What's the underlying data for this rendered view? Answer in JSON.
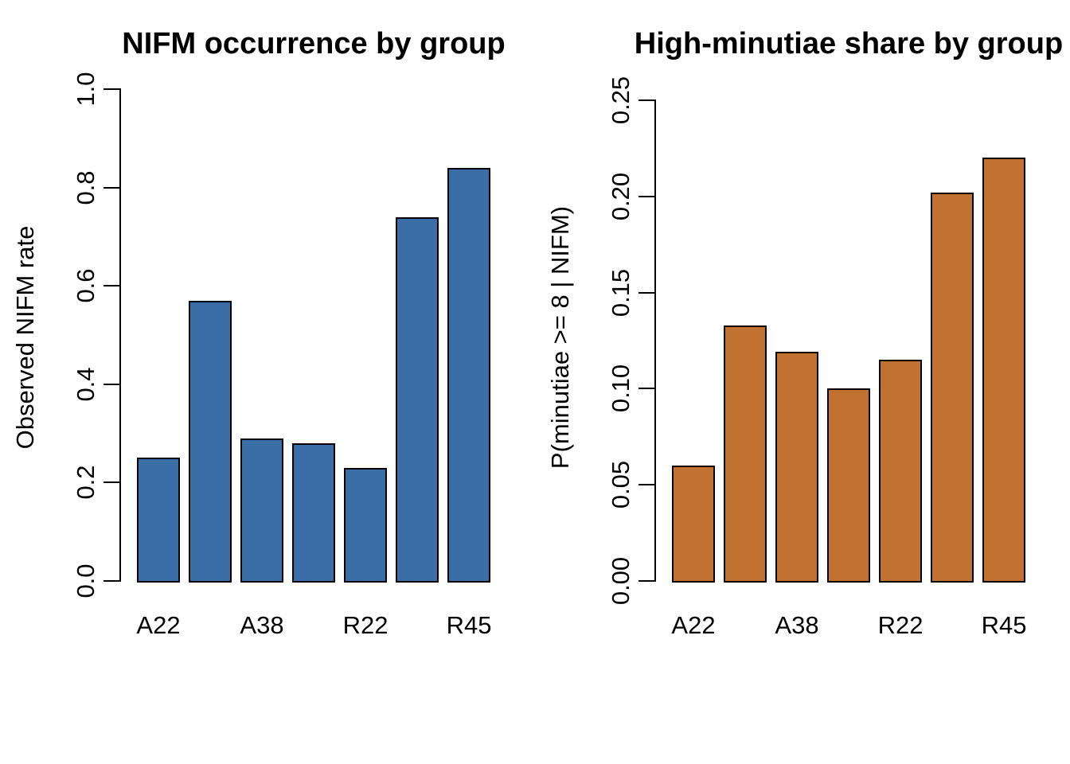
{
  "figure": {
    "background": "#FFFFFF",
    "text_color": "#000000",
    "axis_color": "#000000"
  },
  "chart_data": [
    {
      "id": "nifm-occurrence",
      "type": "bar",
      "title": "NIFM occurrence by group",
      "xlabel": "",
      "ylabel": "Observed NIFM rate",
      "categories": [
        "A22",
        "",
        "A38",
        "",
        "R22",
        "",
        "R45"
      ],
      "values": [
        0.25,
        0.57,
        0.29,
        0.28,
        0.23,
        0.74,
        0.84
      ],
      "ylim": [
        0,
        1.0
      ],
      "ytick_labels": [
        "0.0",
        "0.2",
        "0.4",
        "0.6",
        "0.8",
        "1.0"
      ],
      "bar_color": "#3B6DA6",
      "bar_border_color": "#000000",
      "grid": false,
      "legend": null
    },
    {
      "id": "high-minutiae-share",
      "type": "bar",
      "title": "High-minutiae share by group",
      "xlabel": "",
      "ylabel": "P(minutiae >= 8 | NIFM)",
      "categories": [
        "A22",
        "",
        "A38",
        "",
        "R22",
        "",
        "R45"
      ],
      "values": [
        0.06,
        0.133,
        0.119,
        0.1,
        0.115,
        0.202,
        0.22
      ],
      "ylim": [
        0,
        0.25
      ],
      "ytick_labels": [
        "0.00",
        "0.05",
        "0.10",
        "0.15",
        "0.20",
        "0.25"
      ],
      "bar_color": "#C17231",
      "bar_border_color": "#000000",
      "grid": false,
      "legend": null
    }
  ]
}
